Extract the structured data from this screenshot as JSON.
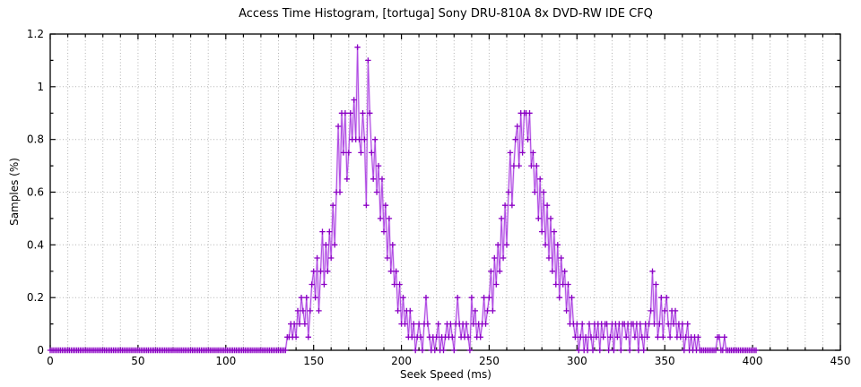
{
  "chart_data": {
    "type": "line",
    "title": "Access Time Histogram, [tortuga] Sony DRU-810A 8x DVD-RW IDE CFQ",
    "xlabel": "Seek Speed (ms)",
    "ylabel": "Samples (%)",
    "xlim": [
      0,
      450
    ],
    "ylim": [
      0,
      1.2
    ],
    "xticks": [
      0,
      50,
      100,
      150,
      200,
      250,
      300,
      350,
      400,
      450
    ],
    "xtick_minor_step": 10,
    "yticks": [
      0,
      0.2,
      0.4,
      0.6,
      0.8,
      1,
      1.2
    ],
    "ytick_minor_step": 0.1,
    "grid": {
      "vertical_step_ms": 10,
      "horizontal_step": 0.2,
      "style": "dotted",
      "color": "#b3b3b3"
    },
    "legend": "none",
    "marker": "plus",
    "colors": {
      "line": "#a83be0",
      "line_halo": "#d9a6f2",
      "marker": "#8a00c4",
      "border": "#000000",
      "background": "#ffffff"
    },
    "series": [
      {
        "name": "samples",
        "x_start": 0,
        "x_step": 1,
        "y_quantum_percent": 0.05,
        "values": [
          0,
          0,
          0,
          0,
          0,
          0,
          0,
          0,
          0,
          0,
          0,
          0,
          0,
          0,
          0,
          0,
          0,
          0,
          0,
          0,
          0,
          0,
          0,
          0,
          0,
          0,
          0,
          0,
          0,
          0,
          0,
          0,
          0,
          0,
          0,
          0,
          0,
          0,
          0,
          0,
          0,
          0,
          0,
          0,
          0,
          0,
          0,
          0,
          0,
          0,
          0,
          0,
          0,
          0,
          0,
          0,
          0,
          0,
          0,
          0,
          0,
          0,
          0,
          0,
          0,
          0,
          0,
          0,
          0,
          0,
          0,
          0,
          0,
          0,
          0,
          0,
          0,
          0,
          0,
          0,
          0,
          0,
          0,
          0,
          0,
          0,
          0,
          0,
          0,
          0,
          0,
          0,
          0,
          0,
          0,
          0,
          0,
          0,
          0,
          0,
          0,
          0,
          0,
          0,
          0,
          0,
          0,
          0,
          0,
          0,
          0,
          0,
          0,
          0,
          0,
          0,
          0,
          0,
          0,
          0,
          0,
          0,
          0,
          0,
          0,
          0,
          0,
          0,
          0,
          0,
          0,
          0,
          0,
          0,
          0,
          0.05,
          0.05,
          0.1,
          0.05,
          0.1,
          0.05,
          0.15,
          0.1,
          0.2,
          0.15,
          0.1,
          0.2,
          0.05,
          0.15,
          0.25,
          0.3,
          0.2,
          0.35,
          0.15,
          0.3,
          0.45,
          0.25,
          0.4,
          0.3,
          0.45,
          0.35,
          0.55,
          0.4,
          0.6,
          0.85,
          0.6,
          0.9,
          0.75,
          0.9,
          0.65,
          0.75,
          0.9,
          0.8,
          0.95,
          0.8,
          1.15,
          0.8,
          0.75,
          0.9,
          0.8,
          0.55,
          1.1,
          0.9,
          0.75,
          0.65,
          0.8,
          0.6,
          0.7,
          0.5,
          0.65,
          0.45,
          0.55,
          0.35,
          0.5,
          0.3,
          0.4,
          0.25,
          0.3,
          0.15,
          0.25,
          0.1,
          0.2,
          0.1,
          0.15,
          0.05,
          0.15,
          0.05,
          0.1,
          0,
          0.05,
          0.1,
          0.05,
          0,
          0.1,
          0.2,
          0.1,
          0.05,
          0,
          0.05,
          0,
          0.05,
          0.1,
          0,
          0.05,
          0,
          0.05,
          0.1,
          0.05,
          0.1,
          0.05,
          0,
          0.1,
          0.2,
          0.1,
          0.05,
          0.1,
          0.05,
          0.1,
          0.05,
          0,
          0.2,
          0.1,
          0.15,
          0.05,
          0.1,
          0.05,
          0.1,
          0.2,
          0.1,
          0.15,
          0.2,
          0.3,
          0.15,
          0.35,
          0.25,
          0.4,
          0.3,
          0.5,
          0.35,
          0.55,
          0.4,
          0.6,
          0.75,
          0.55,
          0.7,
          0.8,
          0.85,
          0.7,
          0.9,
          0.75,
          0.9,
          0.9,
          0.8,
          0.9,
          0.7,
          0.75,
          0.6,
          0.7,
          0.5,
          0.65,
          0.45,
          0.6,
          0.4,
          0.55,
          0.35,
          0.5,
          0.3,
          0.45,
          0.25,
          0.4,
          0.2,
          0.35,
          0.25,
          0.3,
          0.15,
          0.25,
          0.1,
          0.2,
          0.1,
          0.05,
          0.1,
          0,
          0.05,
          0.1,
          0,
          0.05,
          0,
          0.1,
          0.05,
          0,
          0.1,
          0.05,
          0.1,
          0,
          0.1,
          0.05,
          0.1,
          0.1,
          0,
          0.05,
          0.1,
          0,
          0.1,
          0.05,
          0.1,
          0,
          0.1,
          0.1,
          0.05,
          0.1,
          0,
          0.1,
          0.1,
          0.05,
          0.1,
          0,
          0.1,
          0.05,
          0,
          0.1,
          0.05,
          0.1,
          0.15,
          0.3,
          0.1,
          0.25,
          0.05,
          0.1,
          0.2,
          0.05,
          0.15,
          0.2,
          0.1,
          0.05,
          0.15,
          0.1,
          0.15,
          0.05,
          0.1,
          0.05,
          0.1,
          0,
          0.05,
          0.1,
          0,
          0.05,
          0,
          0.05,
          0,
          0.05,
          0,
          0,
          0,
          0,
          0,
          0,
          0,
          0,
          0,
          0,
          0.05,
          0.05,
          0,
          0,
          0.05,
          0,
          0,
          0,
          0,
          0,
          0,
          0,
          0,
          0,
          0,
          0,
          0,
          0,
          0,
          0,
          0,
          0,
          0
        ]
      }
    ]
  }
}
